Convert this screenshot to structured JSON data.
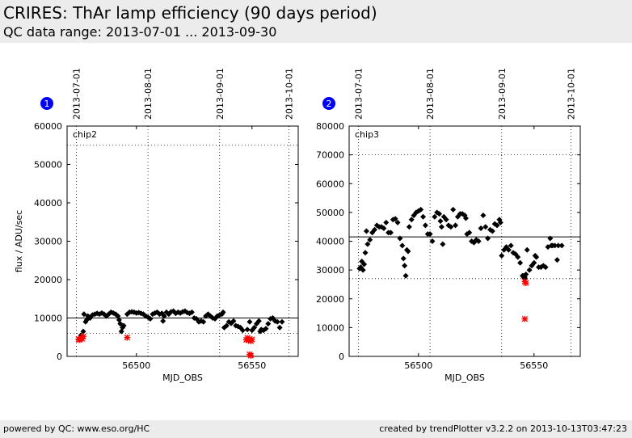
{
  "page": {
    "title": "CRIRES: ThAr lamp efficiency (90 days period)",
    "subtitle": "QC data range: 2013-07-01 ... 2013-09-30",
    "footer_left": "powered by QC: www.eso.org/HC",
    "footer_right": "created by trendPlotter v3.2.2 on 2013-10-13T03:47:23"
  },
  "colors": {
    "header_bg": "#ececec",
    "badge": "#0000ff",
    "point": "#000000",
    "outlier": "#ff0000"
  },
  "chart_data": [
    {
      "type": "scatter",
      "badge": "1",
      "panel_label": "chip2",
      "xlabel": "MJD_OBS",
      "ylabel": "flux / ADU/sec",
      "xlim": [
        56470,
        56570
      ],
      "ylim": [
        0,
        60000
      ],
      "xticks": [
        56500,
        56550
      ],
      "yticks": [
        0,
        10000,
        20000,
        30000,
        40000,
        50000,
        60000
      ],
      "date_marks": [
        {
          "label": "2013-07-01",
          "x": 56474
        },
        {
          "label": "2013-08-01",
          "x": 56505
        },
        {
          "label": "2013-09-01",
          "x": 56536
        },
        {
          "label": "2013-10-01",
          "x": 56566
        }
      ],
      "reference_line": 10000,
      "dotted_lines": [
        55000,
        6000
      ],
      "series": [
        {
          "style": "points",
          "points": [
            [
              56477.3,
              11000
            ],
            [
              56478.0,
              9000
            ],
            [
              56478.5,
              9500
            ],
            [
              56479.0,
              10500
            ],
            [
              56480.0,
              10000
            ],
            [
              56481.0,
              10800
            ],
            [
              56482.0,
              11000
            ],
            [
              56483.0,
              11200
            ],
            [
              56484.0,
              11000
            ],
            [
              56485.0,
              11300
            ],
            [
              56486.0,
              11000
            ],
            [
              56487.0,
              10500
            ],
            [
              56488.0,
              11000
            ],
            [
              56489.0,
              11500
            ],
            [
              56490.0,
              11300
            ],
            [
              56491.0,
              11000
            ],
            [
              56492.0,
              10500
            ],
            [
              56492.5,
              9500
            ],
            [
              56493.0,
              8500
            ],
            [
              56493.5,
              6500
            ],
            [
              56494.0,
              7500
            ],
            [
              56494.5,
              8000
            ],
            [
              56496.0,
              11000
            ],
            [
              56497.0,
              11500
            ],
            [
              56498.0,
              11600
            ],
            [
              56499.0,
              11500
            ],
            [
              56500.0,
              11300
            ],
            [
              56501.0,
              11400
            ],
            [
              56502.0,
              11200
            ],
            [
              56503.0,
              11000
            ],
            [
              56504.0,
              10500
            ],
            [
              56505.0,
              10200
            ],
            [
              56506.0,
              9800
            ],
            [
              56507.0,
              11000
            ],
            [
              56508.0,
              11300
            ],
            [
              56509.0,
              11500
            ],
            [
              56510.0,
              11000
            ],
            [
              56511.0,
              11200
            ],
            [
              56511.5,
              9200
            ],
            [
              56512.0,
              10500
            ],
            [
              56513.0,
              11500
            ],
            [
              56514.0,
              11000
            ],
            [
              56515.0,
              11600
            ],
            [
              56516.0,
              11800
            ],
            [
              56517.0,
              11200
            ],
            [
              56518.0,
              11500
            ],
            [
              56519.0,
              11300
            ],
            [
              56520.0,
              11600
            ],
            [
              56521.0,
              11800
            ],
            [
              56522.0,
              11400
            ],
            [
              56523.0,
              11200
            ],
            [
              56524.0,
              11500
            ],
            [
              56525.0,
              10000
            ],
            [
              56526.0,
              9800
            ],
            [
              56527.0,
              9000
            ],
            [
              56528.0,
              9200
            ],
            [
              56529.0,
              9000
            ],
            [
              56530.0,
              10500
            ],
            [
              56531.0,
              11000
            ],
            [
              56532.0,
              10500
            ],
            [
              56533.0,
              10000
            ],
            [
              56534.0,
              9800
            ],
            [
              56535.0,
              10500
            ],
            [
              56536.0,
              10800
            ],
            [
              56537.0,
              11000
            ],
            [
              56537.5,
              11500
            ],
            [
              56538.0,
              7500
            ],
            [
              56539.0,
              8000
            ],
            [
              56540.0,
              9000
            ],
            [
              56541.0,
              8600
            ],
            [
              56542.0,
              9200
            ],
            [
              56543.0,
              8000
            ],
            [
              56544.0,
              7800
            ],
            [
              56545.0,
              7500
            ],
            [
              56546.0,
              6800
            ],
            [
              56548.0,
              7000
            ],
            [
              56549.0,
              9000
            ],
            [
              56550.0,
              6800
            ],
            [
              56551.0,
              7500
            ],
            [
              56552.0,
              8500
            ],
            [
              56553.0,
              9200
            ],
            [
              56553.5,
              6500
            ],
            [
              56554.0,
              7000
            ],
            [
              56555.0,
              6800
            ],
            [
              56556.0,
              7200
            ],
            [
              56557.0,
              8500
            ],
            [
              56558.0,
              9800
            ],
            [
              56559.0,
              10000
            ],
            [
              56560.0,
              9200
            ],
            [
              56561.0,
              9000
            ],
            [
              56562.0,
              7500
            ],
            [
              56563.0,
              9000
            ],
            [
              56476.0,
              5500
            ],
            [
              56477.0,
              6500
            ]
          ]
        },
        {
          "style": "outliers",
          "points": [
            [
              56475.0,
              4500
            ],
            [
              56475.5,
              4300
            ],
            [
              56476.0,
              4800
            ],
            [
              56476.5,
              4600
            ],
            [
              56477.0,
              5200
            ],
            [
              56496.0,
              4900
            ],
            [
              56547.5,
              4300
            ],
            [
              56548.0,
              4800
            ],
            [
              56548.5,
              4200
            ],
            [
              56549.0,
              4500
            ],
            [
              56549.5,
              4000
            ],
            [
              56550.0,
              4400
            ],
            [
              56549.0,
              500
            ],
            [
              56549.5,
              200
            ]
          ]
        }
      ]
    },
    {
      "type": "scatter",
      "badge": "2",
      "panel_label": "chip3",
      "xlabel": "MJD_OBS",
      "ylabel": "",
      "xlim": [
        56470,
        56570
      ],
      "ylim": [
        0,
        80000
      ],
      "xticks": [
        56500,
        56550
      ],
      "yticks": [
        0,
        10000,
        20000,
        30000,
        40000,
        50000,
        60000,
        70000,
        80000
      ],
      "date_marks": [
        {
          "label": "2013-07-01",
          "x": 56474
        },
        {
          "label": "2013-08-01",
          "x": 56505
        },
        {
          "label": "2013-09-01",
          "x": 56536
        },
        {
          "label": "2013-10-01",
          "x": 56566
        }
      ],
      "reference_line": 41500,
      "dotted_lines": [
        70000,
        27000
      ],
      "series": [
        {
          "style": "points",
          "points": [
            [
              56474.5,
              30500
            ],
            [
              56475.0,
              31000
            ],
            [
              56475.5,
              33000
            ],
            [
              56476.0,
              30000
            ],
            [
              56476.5,
              32000
            ],
            [
              56477.0,
              36000
            ],
            [
              56477.5,
              43500
            ],
            [
              56478.0,
              39000
            ],
            [
              56479.0,
              40500
            ],
            [
              56480.0,
              43000
            ],
            [
              56481.0,
              44000
            ],
            [
              56482.0,
              45500
            ],
            [
              56483.0,
              45000
            ],
            [
              56484.0,
              45000
            ],
            [
              56485.0,
              44500
            ],
            [
              56486.0,
              46500
            ],
            [
              56487.0,
              43000
            ],
            [
              56488.0,
              43000
            ],
            [
              56489.0,
              47500
            ],
            [
              56490.0,
              47800
            ],
            [
              56491.0,
              46500
            ],
            [
              56492.0,
              41000
            ],
            [
              56493.0,
              38500
            ],
            [
              56493.5,
              34000
            ],
            [
              56494.0,
              31500
            ],
            [
              56494.5,
              28000
            ],
            [
              56495.0,
              37000
            ],
            [
              56495.5,
              36500
            ],
            [
              56496.0,
              45000
            ],
            [
              56497.0,
              47500
            ],
            [
              56498.0,
              49000
            ],
            [
              56499.0,
              50000
            ],
            [
              56500.0,
              50500
            ],
            [
              56501.0,
              51000
            ],
            [
              56502.0,
              48500
            ],
            [
              56503.0,
              45500
            ],
            [
              56504.0,
              42500
            ],
            [
              56505.0,
              42500
            ],
            [
              56506.0,
              40000
            ],
            [
              56507.0,
              48500
            ],
            [
              56508.0,
              50000
            ],
            [
              56509.0,
              49500
            ],
            [
              56509.5,
              47000
            ],
            [
              56510.0,
              45000
            ],
            [
              56510.5,
              39000
            ],
            [
              56511.0,
              48500
            ],
            [
              56512.0,
              47500
            ],
            [
              56513.0,
              45500
            ],
            [
              56514.0,
              45000
            ],
            [
              56515.0,
              51000
            ],
            [
              56516.0,
              45500
            ],
            [
              56517.0,
              48500
            ],
            [
              56518.0,
              49500
            ],
            [
              56519.0,
              49500
            ],
            [
              56520.0,
              49000
            ],
            [
              56520.5,
              48000
            ],
            [
              56521.0,
              42500
            ],
            [
              56522.0,
              43000
            ],
            [
              56523.0,
              40000
            ],
            [
              56524.0,
              39500
            ],
            [
              56525.0,
              40500
            ],
            [
              56526.0,
              40000
            ],
            [
              56527.0,
              44500
            ],
            [
              56528.0,
              49000
            ],
            [
              56529.0,
              45000
            ],
            [
              56530.0,
              41000
            ],
            [
              56531.0,
              44000
            ],
            [
              56532.0,
              43500
            ],
            [
              56533.0,
              46000
            ],
            [
              56534.0,
              45500
            ],
            [
              56535.0,
              47500
            ],
            [
              56535.5,
              46500
            ],
            [
              56536.0,
              35000
            ],
            [
              56537.0,
              37000
            ],
            [
              56538.0,
              38000
            ],
            [
              56539.0,
              37000
            ],
            [
              56540.0,
              38500
            ],
            [
              56541.0,
              36000
            ],
            [
              56542.0,
              35500
            ],
            [
              56543.0,
              34500
            ],
            [
              56544.0,
              32500
            ],
            [
              56545.0,
              28000
            ],
            [
              56545.5,
              27500
            ],
            [
              56546.0,
              27000
            ],
            [
              56546.5,
              28500
            ],
            [
              56547.0,
              37000
            ],
            [
              56548.0,
              30000
            ],
            [
              56549.0,
              31500
            ],
            [
              56550.0,
              32500
            ],
            [
              56550.5,
              35000
            ],
            [
              56551.0,
              34500
            ],
            [
              56552.0,
              31000
            ],
            [
              56553.0,
              31000
            ],
            [
              56554.0,
              31500
            ],
            [
              56555.0,
              31000
            ],
            [
              56556.0,
              38000
            ],
            [
              56557.0,
              41000
            ],
            [
              56557.5,
              38500
            ],
            [
              56558.0,
              38500
            ],
            [
              56559.0,
              38500
            ],
            [
              56560.0,
              33500
            ],
            [
              56560.5,
              38500
            ],
            [
              56562.0,
              38500
            ],
            [
              56545.5,
              28000
            ],
            [
              56546.0,
              27500
            ]
          ]
        },
        {
          "style": "outliers",
          "points": [
            [
              56546.0,
              26000
            ],
            [
              56546.5,
              25500
            ],
            [
              56546.0,
              13000
            ]
          ]
        }
      ]
    }
  ]
}
